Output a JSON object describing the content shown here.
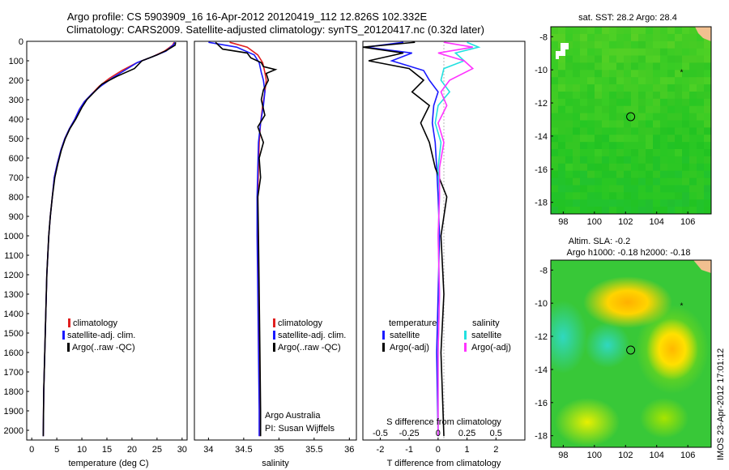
{
  "title_line1": "Argo profile: CS 5903909_16 16-Apr-2012 20120419_112 12.826S 102.332E",
  "title_line2": "Climatology: CARS2009. Satellite-adjusted climatology: synTS_20120417.nc (0.32d later)",
  "side_label": "IMOS 23-Apr-2012 17:01:12",
  "colors": {
    "climatology": "#e02020",
    "satellite": "#1a1aff",
    "argo": "#000000",
    "satellite_s": "#22e0e0",
    "argo_s": "#ff33ff"
  },
  "chart_data": [
    {
      "type": "line",
      "id": "temperature",
      "xlabel": "temperature (deg C)",
      "xlim": [
        -1,
        31
      ],
      "xticks": [
        0,
        5,
        10,
        15,
        20,
        25,
        30
      ],
      "ylim": [
        2050,
        0
      ],
      "yticks": [
        0,
        100,
        200,
        300,
        400,
        500,
        600,
        700,
        800,
        900,
        1000,
        1100,
        1200,
        1300,
        1400,
        1500,
        1600,
        1700,
        1800,
        1900,
        2000
      ],
      "legend": [
        "climatology",
        "satellite-adj. clim.",
        "Argo(..raw -QC)"
      ],
      "series": [
        {
          "name": "climatology",
          "color": "#e02020",
          "x": [
            28.4,
            28.1,
            26.5,
            24,
            21,
            18,
            15.5,
            13.5,
            12,
            10.5,
            9.5,
            8.6,
            7.5,
            6.6,
            5.8,
            5.1,
            4.5,
            4.1,
            3.7,
            3.4,
            3.0,
            2.7,
            2.4,
            2.3
          ],
          "y": [
            5,
            20,
            50,
            80,
            110,
            150,
            190,
            230,
            270,
            310,
            350,
            400,
            450,
            500,
            560,
            630,
            700,
            800,
            900,
            1000,
            1200,
            1500,
            1800,
            2030
          ]
        },
        {
          "name": "satellite-adj. clim.",
          "color": "#1a1aff",
          "x": [
            28.6,
            28.2,
            26.8,
            24,
            21,
            18.5,
            16,
            13.8,
            12,
            10.5,
            9.5,
            8.6,
            7.5,
            6.6,
            5.8,
            5.1,
            4.5,
            4.1,
            3.7,
            3.4,
            3.0,
            2.7,
            2.4,
            2.3
          ],
          "y": [
            5,
            20,
            50,
            80,
            110,
            150,
            190,
            230,
            270,
            310,
            350,
            400,
            450,
            500,
            560,
            630,
            700,
            800,
            900,
            1000,
            1200,
            1500,
            1800,
            2030
          ]
        },
        {
          "name": "Argo(..raw -QC)",
          "color": "#000000",
          "x": [
            28.7,
            28.6,
            27,
            25,
            22,
            20.5,
            17,
            14,
            12.5,
            11,
            10,
            8.8,
            7.6,
            6.7,
            5.9,
            5.2,
            4.6,
            4.1,
            3.7,
            3.4,
            3.0,
            2.7,
            2.4,
            2.3
          ],
          "y": [
            5,
            20,
            45,
            70,
            100,
            140,
            180,
            220,
            260,
            300,
            340,
            400,
            450,
            500,
            560,
            630,
            700,
            800,
            900,
            1000,
            1200,
            1500,
            1800,
            2030
          ]
        }
      ]
    },
    {
      "type": "line",
      "id": "salinity",
      "xlabel": "salinity",
      "xlim": [
        33.8,
        36.1
      ],
      "xticks": [
        34,
        34.5,
        35,
        35.5,
        36
      ],
      "xticklabels": [
        "34",
        "34.5",
        "35",
        "35.5",
        "36"
      ],
      "ylim": [
        2050,
        0
      ],
      "legend": [
        "climatology",
        "satellite-adj. clim.",
        "Argo(..raw -QC)"
      ],
      "annotations": [
        "Argo Australia",
        "PI: Susan Wijffels"
      ],
      "series": [
        {
          "name": "climatology",
          "color": "#e02020",
          "x": [
            34.3,
            34.55,
            34.7,
            34.77,
            34.8,
            34.82,
            34.8,
            34.77,
            34.74,
            34.72,
            34.71,
            34.7,
            34.7,
            34.71,
            34.72,
            34.73,
            34.73
          ],
          "y": [
            5,
            30,
            70,
            110,
            160,
            200,
            260,
            330,
            420,
            520,
            650,
            800,
            1000,
            1300,
            1600,
            1900,
            2030
          ]
        },
        {
          "name": "satellite-adj. clim.",
          "color": "#1a1aff",
          "x": [
            34.0,
            34.4,
            34.65,
            34.72,
            34.75,
            34.78,
            34.8,
            34.78,
            34.74,
            34.71,
            34.7,
            34.69,
            34.69,
            34.7,
            34.71,
            34.72,
            34.72
          ],
          "y": [
            5,
            30,
            70,
            110,
            160,
            200,
            260,
            330,
            420,
            520,
            650,
            800,
            1000,
            1300,
            1600,
            1900,
            2030
          ]
        },
        {
          "name": "Argo(..raw -QC)",
          "color": "#000000",
          "x": [
            34.1,
            34.2,
            34.55,
            34.6,
            34.75,
            34.78,
            34.95,
            34.82,
            34.85,
            34.78,
            34.75,
            34.8,
            34.7,
            34.78,
            34.72,
            34.74,
            34.7,
            34.71,
            34.72,
            34.73,
            34.74,
            34.74
          ],
          "y": [
            5,
            40,
            60,
            85,
            110,
            130,
            145,
            165,
            200,
            250,
            300,
            380,
            440,
            520,
            600,
            700,
            800,
            1000,
            1300,
            1600,
            1900,
            2030
          ]
        }
      ]
    },
    {
      "type": "line",
      "id": "differences",
      "xlabel": "T difference from climatology",
      "xlabel_top": "S difference from climatology",
      "xlim": [
        -2.6,
        3.0
      ],
      "xticks": [
        -2,
        -1,
        0,
        1,
        2
      ],
      "s_ticklabels": [
        "-0.5",
        "-0.25",
        "0",
        "0.25",
        "0.5"
      ],
      "ylim": [
        2050,
        0
      ],
      "legend_headers": [
        "temperature",
        "salinity"
      ],
      "legend": [
        "satellite",
        "Argo(-adj)",
        "satellite",
        "Argo(-adj)"
      ],
      "series": [
        {
          "name": "satellite",
          "color": "#1a1aff",
          "x": [
            -1.2,
            -2.5,
            -0.9,
            -1.6,
            -0.5,
            -0.3,
            0,
            -0.15,
            -0.2,
            -0.1,
            -0.05,
            0,
            0.05,
            0,
            -0.05,
            0
          ],
          "y": [
            5,
            30,
            60,
            100,
            150,
            200,
            260,
            330,
            420,
            520,
            650,
            800,
            1000,
            1300,
            1600,
            2030
          ]
        },
        {
          "name": "Argo(-adj)",
          "color": "#000000",
          "x": [
            -0.8,
            -2.6,
            -1.2,
            -2.4,
            -1.0,
            -0.5,
            -0.9,
            -0.3,
            -0.6,
            -0.3,
            -0.1,
            0.3,
            0.1,
            0.2,
            0.1,
            0.2
          ],
          "y": [
            5,
            30,
            60,
            100,
            140,
            200,
            260,
            330,
            420,
            520,
            650,
            800,
            1000,
            1300,
            1600,
            2030
          ]
        },
        {
          "name": "satellite",
          "color": "#22e0e0",
          "x": [
            1.0,
            1.4,
            0.6,
            0.9,
            0.2,
            0.1,
            0.4,
            0.0,
            -0.1,
            0.1,
            0.0,
            0.05,
            0,
            0.05,
            0,
            0
          ],
          "y": [
            5,
            30,
            60,
            100,
            140,
            200,
            260,
            330,
            420,
            520,
            650,
            800,
            1000,
            1300,
            1600,
            2030
          ]
        },
        {
          "name": "Argo(-adj)",
          "color": "#ff33ff",
          "x": [
            0.2,
            1.2,
            0.0,
            0.9,
            1.2,
            0.4,
            0.1,
            0.3,
            0.0,
            0.2,
            0.05,
            0.05,
            0,
            0.05,
            0,
            0
          ],
          "y": [
            5,
            30,
            60,
            100,
            140,
            200,
            260,
            330,
            420,
            520,
            650,
            800,
            1000,
            1300,
            1600,
            2030
          ]
        }
      ]
    },
    {
      "type": "heatmap",
      "id": "sst-map",
      "title": "sat. SST: 28.2 Argo: 28.4",
      "xlim": [
        97.2,
        107.5
      ],
      "xticks": [
        98,
        100,
        102,
        104,
        106
      ],
      "ylim": [
        -18.7,
        -7.4
      ],
      "yticks": [
        -8,
        -10,
        -12,
        -14,
        -16,
        -18
      ],
      "argo_position": [
        102.33,
        -12.83
      ]
    },
    {
      "type": "heatmap",
      "id": "sla-map",
      "title_line1": "Altim. SLA: -0.2",
      "title_line2": "Argo h1000: -0.18 h2000: -0.18",
      "xlim": [
        97.2,
        107.5
      ],
      "xticks": [
        98,
        100,
        102,
        104,
        106
      ],
      "ylim": [
        -18.7,
        -7.4
      ],
      "yticks": [
        -8,
        -10,
        -12,
        -14,
        -16,
        -18
      ],
      "argo_position": [
        102.33,
        -12.83
      ]
    }
  ]
}
